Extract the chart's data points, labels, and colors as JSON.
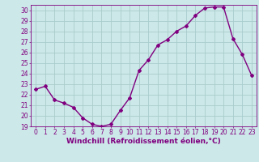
{
  "x": [
    0,
    1,
    2,
    3,
    4,
    5,
    6,
    7,
    8,
    9,
    10,
    11,
    12,
    13,
    14,
    15,
    16,
    17,
    18,
    19,
    20,
    21,
    22,
    23
  ],
  "y": [
    22.5,
    22.8,
    21.5,
    21.2,
    20.8,
    19.8,
    19.2,
    19.0,
    19.2,
    20.5,
    21.7,
    24.3,
    25.3,
    26.7,
    27.2,
    28.0,
    28.5,
    29.5,
    30.2,
    30.3,
    30.3,
    27.3,
    25.8,
    23.8
  ],
  "line_color": "#800080",
  "marker": "D",
  "marker_size": 2,
  "bg_color": "#cce8e8",
  "grid_color": "#aacccc",
  "xlabel": "Windchill (Refroidissement éolien,°C)",
  "ylabel": "",
  "xlim": [
    -0.5,
    23.5
  ],
  "ylim": [
    19,
    30.5
  ],
  "yticks": [
    19,
    20,
    21,
    22,
    23,
    24,
    25,
    26,
    27,
    28,
    29,
    30
  ],
  "xticks": [
    0,
    1,
    2,
    3,
    4,
    5,
    6,
    7,
    8,
    9,
    10,
    11,
    12,
    13,
    14,
    15,
    16,
    17,
    18,
    19,
    20,
    21,
    22,
    23
  ],
  "axis_color": "#800080",
  "tick_color": "#800080",
  "xlabel_color": "#800080",
  "xlabel_fontsize": 6.5,
  "tick_fontsize": 5.5,
  "line_width": 1.0
}
